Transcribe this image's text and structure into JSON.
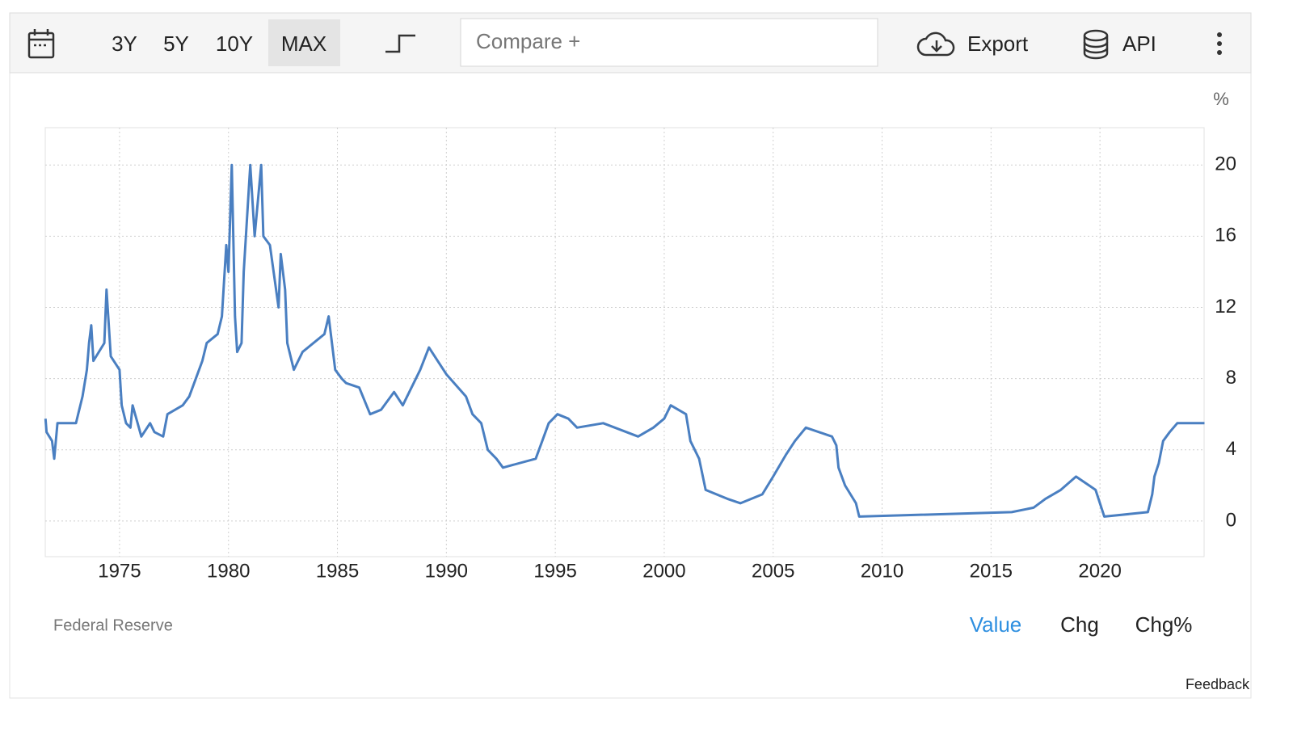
{
  "toolbar": {
    "ranges": [
      "3Y",
      "5Y",
      "10Y",
      "MAX"
    ],
    "compare": "Compare +",
    "export": "Export",
    "api": "API"
  },
  "chart_data": {
    "type": "line",
    "unit_label": "%",
    "color": "#4a7fc1",
    "grid": true,
    "x": [
      1971.6,
      1971.65,
      1971.9,
      1972.0,
      1972.15,
      1973.0,
      1973.1,
      1973.3,
      1973.5,
      1973.6,
      1973.7,
      1973.8,
      1974.3,
      1974.4,
      1974.6,
      1975.0,
      1975.1,
      1975.3,
      1975.5,
      1975.6,
      1976.0,
      1976.4,
      1976.6,
      1977.0,
      1977.2,
      1977.9,
      1978.2,
      1978.5,
      1978.8,
      1979.0,
      1979.5,
      1979.7,
      1979.9,
      1980.0,
      1980.15,
      1980.3,
      1980.4,
      1980.6,
      1980.7,
      1980.9,
      1981.0,
      1981.2,
      1981.5,
      1981.6,
      1981.9,
      1982.3,
      1982.4,
      1982.6,
      1982.7,
      1983.0,
      1983.4,
      1984.4,
      1984.6,
      1984.9,
      1985.2,
      1985.4,
      1986.0,
      1986.5,
      1987.0,
      1987.6,
      1988.0,
      1988.4,
      1988.8,
      1989.2,
      1989.6,
      1990.0,
      1990.9,
      1991.2,
      1991.6,
      1991.9,
      1992.3,
      1992.6,
      1994.1,
      1994.4,
      1994.7,
      1995.1,
      1995.6,
      1996.0,
      1997.2,
      1998.8,
      1999.5,
      2000.0,
      2000.3,
      2001.0,
      2001.2,
      2001.6,
      2001.9,
      2002.9,
      2003.5,
      2004.5,
      2005.0,
      2005.6,
      2006.0,
      2006.5,
      2007.7,
      2007.9,
      2008.0,
      2008.3,
      2008.8,
      2008.95,
      2015.95,
      2016.95,
      2017.5,
      2018.2,
      2018.9,
      2019.5,
      2019.8,
      2020.2,
      2022.2,
      2022.4,
      2022.5,
      2022.7,
      2022.9,
      2023.2,
      2023.55,
      2024.8
    ],
    "values": [
      5.75,
      5.0,
      4.5,
      3.5,
      5.5,
      5.5,
      6.0,
      7.0,
      8.5,
      10.0,
      11.0,
      9.0,
      10.0,
      13.0,
      9.25,
      8.5,
      6.5,
      5.5,
      5.25,
      6.5,
      4.75,
      5.5,
      5.0,
      4.75,
      6.0,
      6.5,
      7.0,
      8.0,
      9.0,
      10.0,
      10.5,
      11.5,
      15.5,
      14.0,
      20.0,
      11.5,
      9.5,
      10.0,
      14.0,
      18.0,
      20.0,
      16.0,
      20.0,
      16.0,
      15.5,
      12.0,
      15.0,
      13.0,
      10.0,
      8.5,
      9.5,
      10.5,
      11.5,
      8.5,
      8.0,
      7.75,
      7.5,
      6.0,
      6.25,
      7.25,
      6.5,
      7.5,
      8.5,
      9.75,
      9.0,
      8.25,
      7.0,
      6.0,
      5.5,
      4.0,
      3.5,
      3.0,
      3.5,
      4.5,
      5.5,
      6.0,
      5.75,
      5.25,
      5.5,
      4.75,
      5.25,
      5.75,
      6.5,
      6.0,
      4.5,
      3.5,
      1.75,
      1.25,
      1.0,
      1.5,
      2.5,
      3.75,
      4.5,
      5.25,
      4.75,
      4.25,
      3.0,
      2.0,
      1.0,
      0.25,
      0.5,
      0.75,
      1.25,
      1.75,
      2.5,
      2.0,
      1.75,
      0.25,
      0.5,
      1.5,
      2.5,
      3.25,
      4.5,
      5.0,
      5.5,
      5.5
    ],
    "xlim": [
      1971.59,
      2024.78
    ],
    "ylim": [
      -2,
      22.1
    ],
    "xticks": [
      1975,
      1980,
      1985,
      1990,
      1995,
      2000,
      2005,
      2010,
      2015,
      2020
    ],
    "yticks": [
      0,
      4,
      8,
      12,
      16,
      20
    ]
  },
  "footer": {
    "source": "Federal Reserve",
    "views": [
      "Value",
      "Chg",
      "Chg%"
    ],
    "feedback": "Feedback"
  }
}
